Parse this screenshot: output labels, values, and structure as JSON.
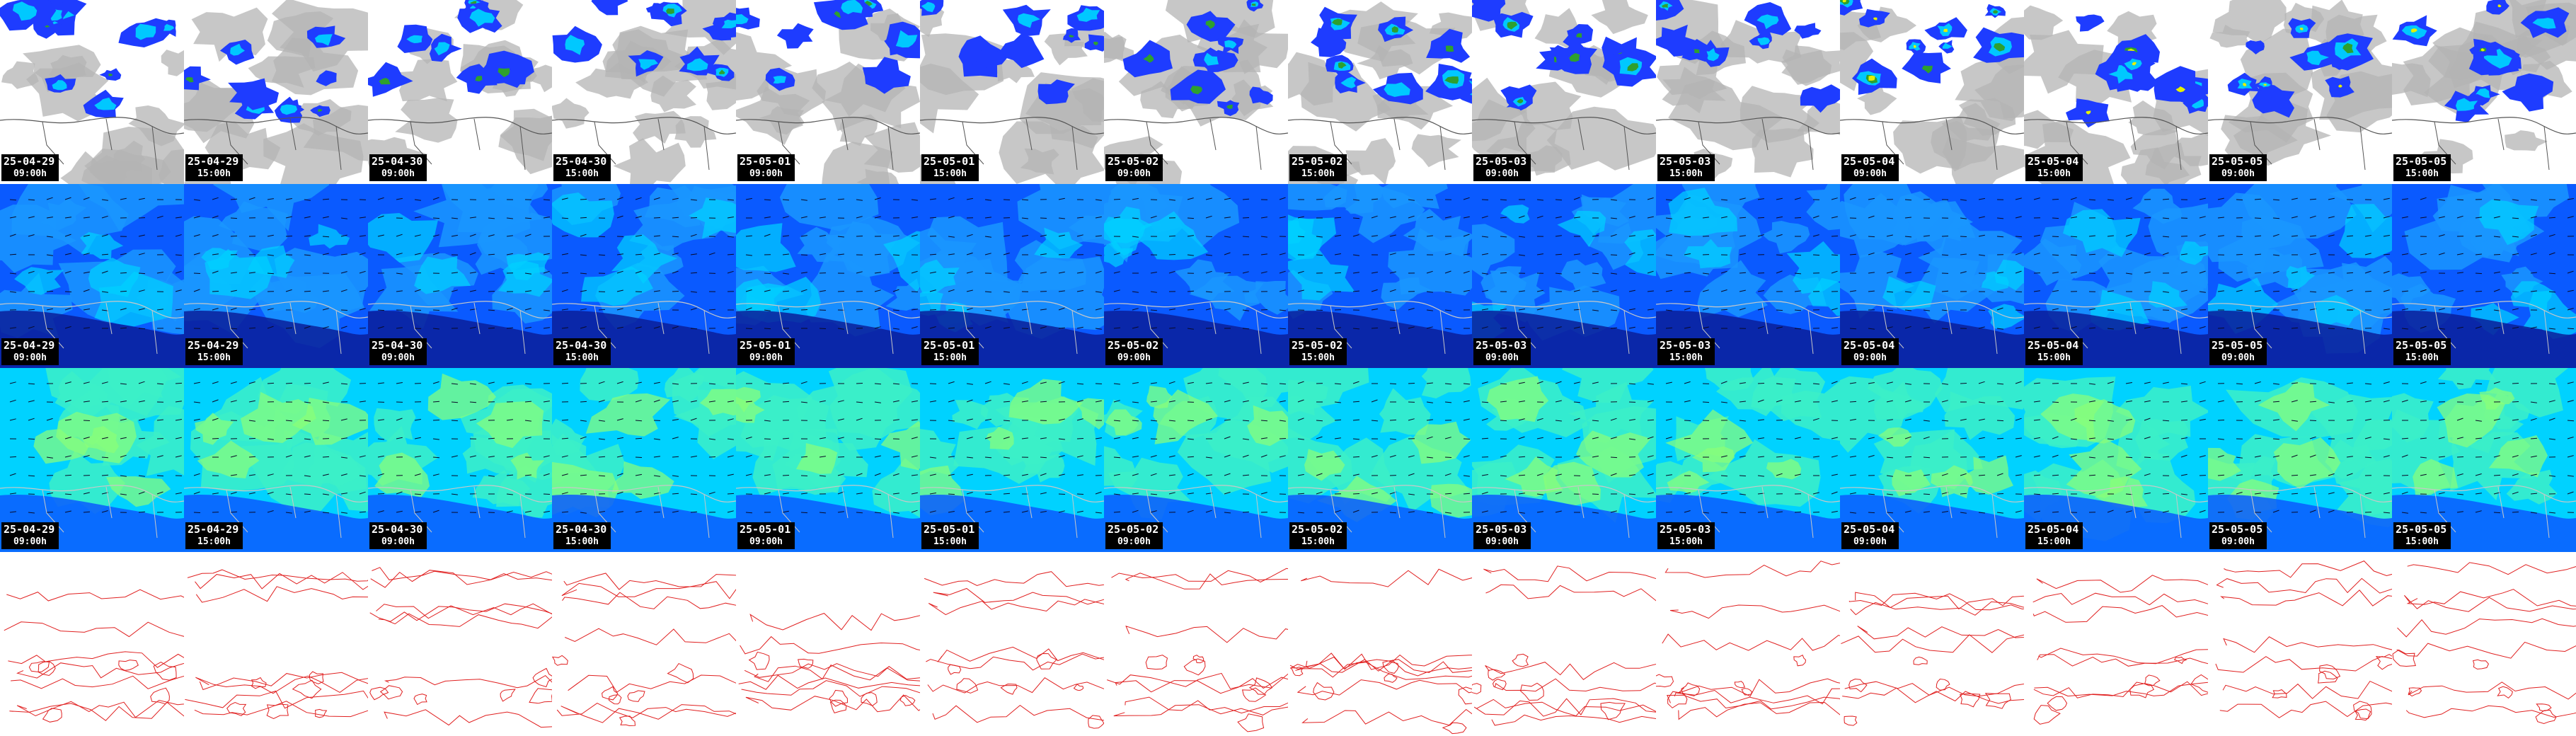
{
  "rows": [
    {
      "id": "precip-cloud",
      "label": ""
    },
    {
      "id": "field-a",
      "label": ""
    },
    {
      "id": "field-b",
      "label": ""
    },
    {
      "id": "contour",
      "label": ""
    }
  ],
  "frames": [
    {
      "date": "25-04-29",
      "time": "09:00h"
    },
    {
      "date": "25-04-29",
      "time": "15:00h"
    },
    {
      "date": "25-04-30",
      "time": "09:00h"
    },
    {
      "date": "25-04-30",
      "time": "15:00h"
    },
    {
      "date": "25-05-01",
      "time": "09:00h"
    },
    {
      "date": "25-05-01",
      "time": "15:00h"
    },
    {
      "date": "25-05-02",
      "time": "09:00h"
    },
    {
      "date": "25-05-02",
      "time": "15:00h"
    },
    {
      "date": "25-05-03",
      "time": "09:00h"
    },
    {
      "date": "25-05-03",
      "time": "15:00h"
    },
    {
      "date": "25-05-04",
      "time": "09:00h"
    },
    {
      "date": "25-05-04",
      "time": "15:00h"
    },
    {
      "date": "25-05-05",
      "time": "09:00h"
    },
    {
      "date": "25-05-05",
      "time": "15:00h"
    }
  ],
  "colors": {
    "cloud": "#b4b4b4",
    "precip_blue": "#1e3cff",
    "precip_cyan": "#00c8ff",
    "precip_green": "#2ea02e",
    "precip_yellow": "#e6f000",
    "field_navy": "#0a1e9a",
    "field_blue": "#0a5aff",
    "field_sky": "#1a96ff",
    "field_cyan": "#00d2ff",
    "field_teal": "#3cf0c8",
    "field_green": "#8cff78",
    "coast": "#c8c8c8",
    "contour": "#e02020",
    "stamp_bg": "#000000",
    "stamp_fg": "#ffffff"
  }
}
